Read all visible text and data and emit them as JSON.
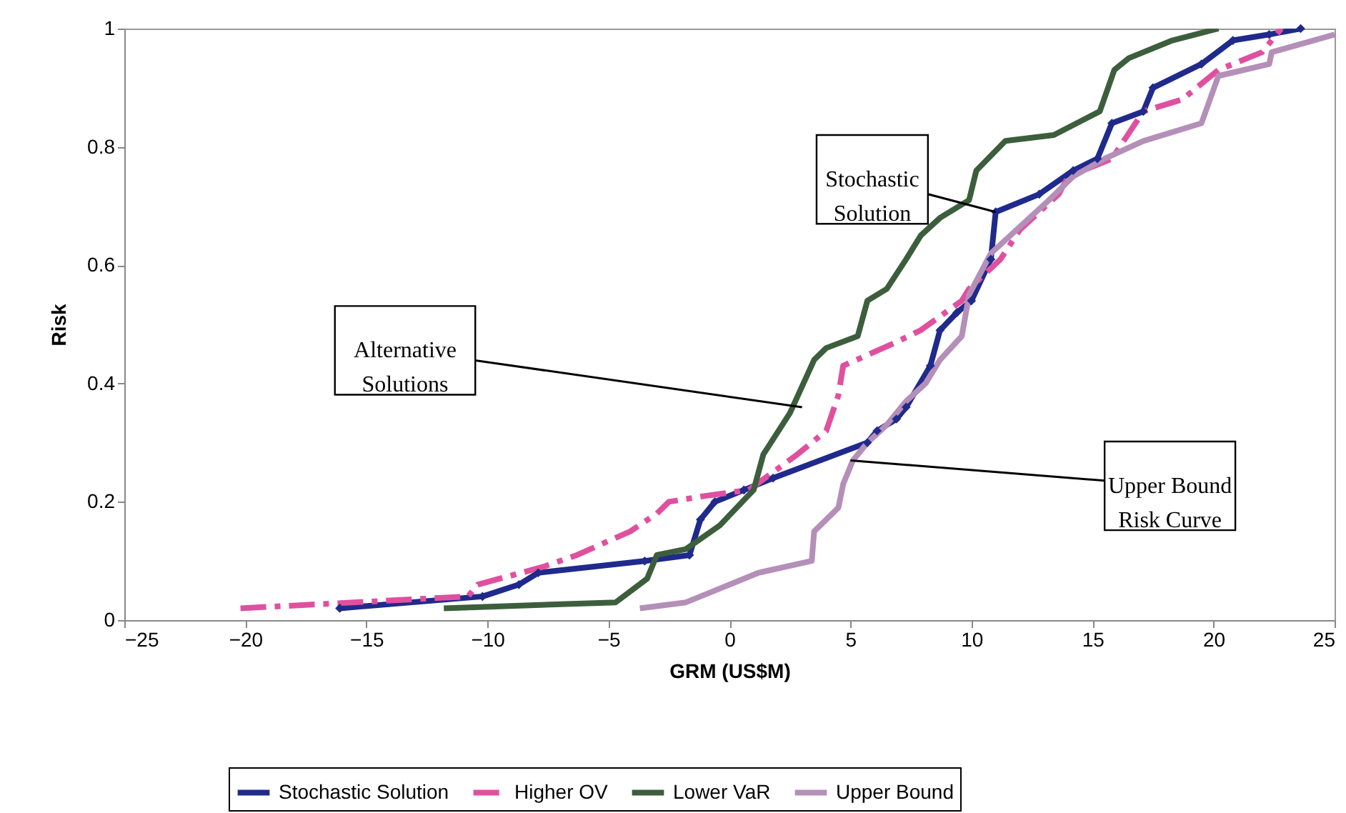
{
  "chart_data": {
    "type": "line",
    "xlabel": "GRM (US$M)",
    "ylabel": "Risk",
    "xlim": [
      -25,
      25
    ],
    "xticks": [
      -25,
      -20,
      -15,
      -10,
      -5,
      0,
      5,
      10,
      15,
      20,
      25
    ],
    "ylim": [
      0,
      1
    ],
    "yticks": [
      0,
      0.2,
      0.4,
      0.6,
      0.8,
      1
    ],
    "grid": false,
    "legend": "bottom",
    "series": [
      {
        "name": "Stochastic Solution",
        "color": "#1f2a8c",
        "marker": "diamond",
        "line_style": "solid",
        "x": [
          -16.1,
          -10.2,
          -8.7,
          -7.9,
          -3.5,
          -1.65,
          -1.2,
          -0.6,
          0.6,
          1.8,
          5.7,
          6.1,
          6.9,
          7.3,
          8.3,
          8.7,
          9.4,
          10.0,
          10.8,
          11.0,
          12.8,
          14.2,
          15.2,
          15.8,
          17.1,
          17.5,
          19.5,
          20.8,
          22.3,
          23.6
        ],
        "values": [
          0.02,
          0.04,
          0.06,
          0.08,
          0.1,
          0.11,
          0.17,
          0.2,
          0.22,
          0.24,
          0.3,
          0.32,
          0.34,
          0.36,
          0.43,
          0.49,
          0.52,
          0.54,
          0.61,
          0.69,
          0.72,
          0.76,
          0.78,
          0.84,
          0.86,
          0.9,
          0.94,
          0.98,
          0.99,
          1.0
        ]
      },
      {
        "name": "Higher OV",
        "color": "#e0509f",
        "marker": "none",
        "line_style": "dashed",
        "x": [
          -20.2,
          -10.8,
          -10.4,
          -7.7,
          -6.3,
          -4.1,
          -3,
          -2.5,
          -1.0,
          0.8,
          1.8,
          2.8,
          4,
          4.5,
          4.7,
          6.9,
          7.9,
          9.6,
          9.9,
          11.2,
          12,
          13.6,
          14,
          15.8,
          17.1,
          18.7,
          20.2,
          22,
          22.8
        ],
        "values": [
          0.02,
          0.04,
          0.06,
          0.09,
          0.11,
          0.15,
          0.18,
          0.2,
          0.21,
          0.22,
          0.25,
          0.28,
          0.32,
          0.38,
          0.43,
          0.47,
          0.49,
          0.54,
          0.56,
          0.61,
          0.66,
          0.72,
          0.75,
          0.78,
          0.86,
          0.88,
          0.93,
          0.96,
          1.0
        ]
      },
      {
        "name": "Lower VaR",
        "color": "#3c5e3c",
        "marker": "none",
        "line_style": "solid",
        "x": [
          -11.8,
          -4.7,
          -3.4,
          -3,
          -1.8,
          -0.4,
          1,
          1.4,
          2.5,
          3.5,
          4,
          5.3,
          5.7,
          6.5,
          7.3,
          7.9,
          8.7,
          9.9,
          10.2,
          11.4,
          13.4,
          15.3,
          15.9,
          16.5,
          18.3,
          20.2
        ],
        "values": [
          0.02,
          0.03,
          0.07,
          0.11,
          0.12,
          0.16,
          0.22,
          0.28,
          0.35,
          0.44,
          0.46,
          0.48,
          0.54,
          0.56,
          0.61,
          0.65,
          0.68,
          0.71,
          0.76,
          0.81,
          0.82,
          0.86,
          0.93,
          0.95,
          0.98,
          1.0
        ]
      },
      {
        "name": "Upper Bound",
        "color": "#b48fb8",
        "marker": "none",
        "line_style": "solid",
        "x": [
          -3.7,
          -1.8,
          -0.6,
          1.2,
          3.4,
          3.5,
          4.5,
          4.7,
          5.1,
          5.7,
          6.5,
          7.3,
          8.1,
          8.7,
          9.6,
          9.9,
          10.8,
          13.2,
          14.2,
          15.5,
          17.1,
          19.5,
          20.2,
          22.3,
          22.4,
          25
        ],
        "values": [
          0.02,
          0.03,
          0.05,
          0.08,
          0.1,
          0.15,
          0.19,
          0.23,
          0.27,
          0.3,
          0.33,
          0.37,
          0.4,
          0.44,
          0.48,
          0.55,
          0.62,
          0.71,
          0.75,
          0.78,
          0.81,
          0.84,
          0.92,
          0.94,
          0.96,
          0.99
        ]
      }
    ],
    "annotations": [
      {
        "text": "Stochastic Solution",
        "x": 11.0,
        "y": 0.69
      },
      {
        "text": "Alternative Solutions",
        "x": 3.0,
        "y": 0.36
      },
      {
        "text": "Upper Bound Risk Curve",
        "x": 5.0,
        "y": 0.27
      }
    ]
  }
}
